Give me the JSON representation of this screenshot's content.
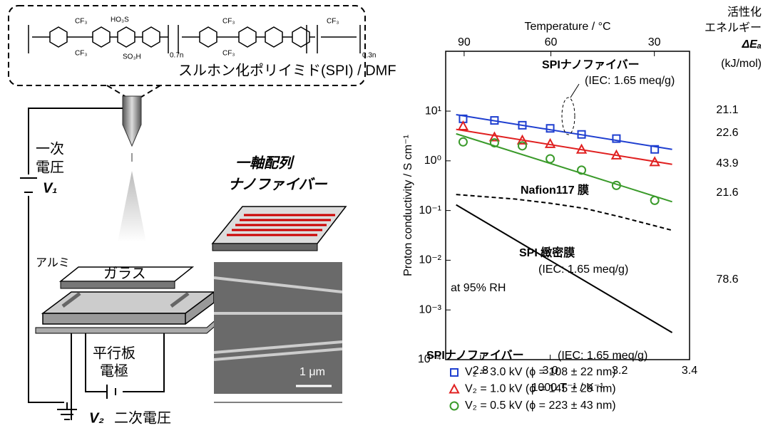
{
  "diagram": {
    "polymer_label": "スルホン化ポリイミド(SPI) / DMF",
    "formula_labels": [
      "CF₃",
      "CF₃",
      "HO₃S",
      "SO₃H",
      "0.7n",
      "CF₃",
      "CF₃",
      "CF₃",
      "0.3n"
    ],
    "v1_line1": "一次",
    "v1_line2": "電圧",
    "v1": "V₁",
    "aluminum": "アルミ",
    "glass": "ガラス",
    "electrode_line1": "平行板",
    "electrode_line2": "電極",
    "v2": "V₂",
    "v2_label": "二次電圧",
    "aligned_line1": "一軸配列",
    "aligned_line2": "ナノファイバー",
    "scale_bar": "1 μm"
  },
  "chart_data": {
    "type": "scatter",
    "xlabel": "1000 T⁻¹ / K⁻¹",
    "ylabel": "Proton conductivity / S cm⁻¹",
    "x2label": "Temperature / °C",
    "xlim": [
      2.7,
      3.4
    ],
    "ylim": [
      0.0001,
      160
    ],
    "log_y": true,
    "xticks": [
      2.8,
      {
        "value": 3,
        "label": "3.0"
      },
      3.2,
      3.4
    ],
    "x2ticks": [
      {
        "value": 2.753,
        "label": "90"
      },
      {
        "value": 3.002,
        "label": "60"
      },
      {
        "value": 3.299,
        "label": "30"
      }
    ],
    "yticks": [
      {
        "value": 10,
        "label": "10¹"
      },
      {
        "value": 1,
        "label": "10⁰"
      },
      {
        "value": 0.1,
        "label": "10⁻¹"
      },
      {
        "value": 0.01,
        "label": "10⁻²"
      },
      {
        "value": 0.001,
        "label": "10⁻³"
      },
      {
        "value": 0.0001,
        "label": "10⁻⁴"
      }
    ],
    "series": [
      {
        "name": "V₂ = 3.0 kV (ϕ = 108 ± 22 nm)",
        "mode": "markers",
        "marker": "square",
        "color": "#1f3fd0",
        "x": [
          2.75,
          2.84,
          2.92,
          3.0,
          3.09,
          3.19,
          3.3
        ],
        "values": [
          7.0,
          6.5,
          5.2,
          4.5,
          3.4,
          2.8,
          1.7
        ]
      },
      {
        "name": "V₂ = 1.0 kV (ϕ = 145 ± 29 nm)",
        "mode": "markers",
        "marker": "triangle",
        "color": "#e02020",
        "x": [
          2.75,
          2.84,
          2.92,
          3.0,
          3.09,
          3.19,
          3.3
        ],
        "values": [
          5.0,
          3.0,
          2.6,
          2.2,
          1.7,
          1.3,
          0.95
        ]
      },
      {
        "name": "V₂ = 0.5 kV (ϕ = 223 ± 43 nm)",
        "mode": "markers",
        "marker": "circle",
        "color": "#3a9a2a",
        "x": [
          2.75,
          2.84,
          2.92,
          3.0,
          3.09,
          3.19,
          3.3
        ],
        "values": [
          2.4,
          2.3,
          2.0,
          1.1,
          0.65,
          0.32,
          0.16
        ]
      },
      {
        "mode": "line",
        "color": "#1f3fd0",
        "x": [
          2.73,
          3.35
        ],
        "values": [
          8.5,
          1.7
        ]
      },
      {
        "mode": "line",
        "color": "#e02020",
        "x": [
          2.73,
          3.35
        ],
        "values": [
          4.3,
          0.85
        ]
      },
      {
        "mode": "line",
        "color": "#3a9a2a",
        "x": [
          2.73,
          3.35
        ],
        "values": [
          3.5,
          0.15
        ]
      },
      {
        "name": "Nafion117 膜",
        "mode": "line",
        "dash": true,
        "color": "#000000",
        "x": [
          2.73,
          2.9,
          3.0,
          3.1,
          3.2,
          3.35
        ],
        "values": [
          0.21,
          0.17,
          0.14,
          0.11,
          0.075,
          0.04
        ]
      },
      {
        "name": "SPI 緻密膜",
        "mode": "line",
        "color": "#000000",
        "x": [
          2.73,
          3.35
        ],
        "values": [
          0.13,
          0.00035
        ]
      }
    ],
    "annotations": [
      "SPIナノファイバー",
      "(IEC: 1.65 meq/g)",
      "(IEC: 1.65 meq/g)",
      "at 95% RH"
    ],
    "activation_energy_title": [
      "活性化",
      "エネルギー",
      "ΔEₐ",
      "(kJ/mol)"
    ],
    "activation_energy": [
      21.1,
      22.6,
      43.9,
      21.6,
      78.6
    ],
    "legend_title": "SPIナノファイバー",
    "legend_subtitle": "(IEC: 1.65 meq/g)"
  }
}
